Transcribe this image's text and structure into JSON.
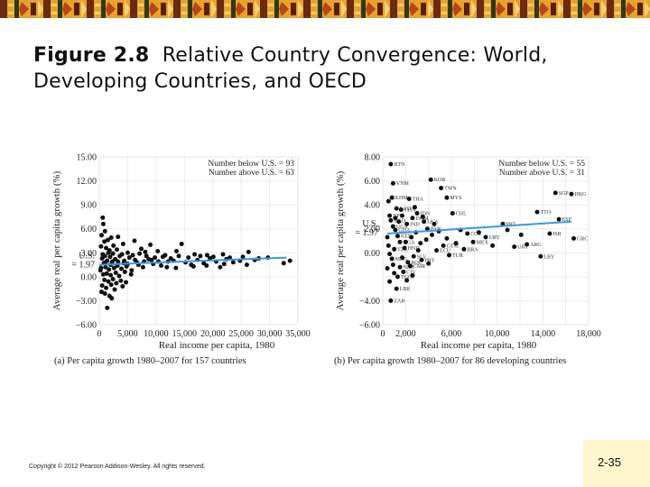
{
  "slide": {
    "title_bold": "Figure 2.8",
    "title_rest": "Relative Country Convergence: World, Developing Countries, and OECD",
    "copyright": "Copyright © 2012 Pearson Addison-Wesley. All rights reserved.",
    "page_number": "2-35",
    "colors": {
      "trend": "#3a9ad9",
      "dot": "#111111",
      "grid": "#e4e4e4",
      "slide_number_bg": "#fdf5cc"
    }
  },
  "chart_data": [
    {
      "type": "scatter",
      "id": "a",
      "caption": "(a) Per capita growth 1980–2007 for 157 countries",
      "xlabel": "Real income per capita, 1980",
      "ylabel": "Average real per capita growth (%)",
      "xlim": [
        0,
        35000
      ],
      "ylim": [
        -6,
        15
      ],
      "x_ticks": [
        0,
        5000,
        10000,
        15000,
        20000,
        25000,
        30000,
        35000
      ],
      "x_tick_labels": [
        "0",
        "5,000",
        "10,000",
        "15,000",
        "20,000",
        "25,000",
        "30,000",
        "35,000"
      ],
      "y_ticks": [
        -6,
        -3,
        0,
        3,
        6,
        9,
        12,
        15
      ],
      "y_tick_labels": [
        "−6.00",
        "−3.00",
        "0.00",
        "3.00",
        "6.00",
        "9.00",
        "12.00",
        "15.00"
      ],
      "us_label": "U.S.",
      "us_value_label": "= 1.97",
      "us_growth": 1.97,
      "annotation_lines": [
        "Number below U.S. = 93",
        "Number above U.S. = 63"
      ],
      "trend": {
        "x": [
          0,
          33000
        ],
        "y": [
          1.5,
          2.4
        ]
      },
      "points": [
        {
          "x": 600,
          "y": 7.4
        },
        {
          "x": 700,
          "y": 6.6
        },
        {
          "x": 1000,
          "y": 5.7
        },
        {
          "x": 400,
          "y": 5.2
        },
        {
          "x": 1500,
          "y": 4.6
        },
        {
          "x": 900,
          "y": 4.4
        },
        {
          "x": 2100,
          "y": 4.9
        },
        {
          "x": 300,
          "y": 3.8
        },
        {
          "x": 1200,
          "y": 3.6
        },
        {
          "x": 1800,
          "y": 3.3
        },
        {
          "x": 2500,
          "y": 3.9
        },
        {
          "x": 3300,
          "y": 5.0
        },
        {
          "x": 4200,
          "y": 4.1
        },
        {
          "x": 5000,
          "y": 3.0
        },
        {
          "x": 6200,
          "y": 4.5
        },
        {
          "x": 7400,
          "y": 3.5
        },
        {
          "x": 8100,
          "y": 3.1
        },
        {
          "x": 9000,
          "y": 4.0
        },
        {
          "x": 10300,
          "y": 3.2
        },
        {
          "x": 11200,
          "y": 2.5
        },
        {
          "x": 13600,
          "y": 3.2
        },
        {
          "x": 14500,
          "y": 4.1
        },
        {
          "x": 8700,
          "y": 2.2
        },
        {
          "x": 6600,
          "y": 1.8
        },
        {
          "x": 5300,
          "y": 2.4
        },
        {
          "x": 4400,
          "y": 2.0
        },
        {
          "x": 3600,
          "y": 2.6
        },
        {
          "x": 2800,
          "y": 2.2
        },
        {
          "x": 2300,
          "y": 1.9
        },
        {
          "x": 1900,
          "y": 2.5
        },
        {
          "x": 1400,
          "y": 2.0
        },
        {
          "x": 800,
          "y": 1.7
        },
        {
          "x": 500,
          "y": 2.3
        },
        {
          "x": 300,
          "y": 1.1
        },
        {
          "x": 1100,
          "y": 1.2
        },
        {
          "x": 1700,
          "y": 0.9
        },
        {
          "x": 2600,
          "y": 1.1
        },
        {
          "x": 3200,
          "y": 1.4
        },
        {
          "x": 3900,
          "y": 1.0
        },
        {
          "x": 4800,
          "y": 1.3
        },
        {
          "x": 5700,
          "y": 0.8
        },
        {
          "x": 6900,
          "y": 1.5
        },
        {
          "x": 7700,
          "y": 1.2
        },
        {
          "x": 9500,
          "y": 1.6
        },
        {
          "x": 10900,
          "y": 1.4
        },
        {
          "x": 12100,
          "y": 1.9
        },
        {
          "x": 13100,
          "y": 2.0
        },
        {
          "x": 15200,
          "y": 1.8
        },
        {
          "x": 16200,
          "y": 1.5
        },
        {
          "x": 17300,
          "y": 2.1
        },
        {
          "x": 18400,
          "y": 1.7
        },
        {
          "x": 19500,
          "y": 2.3
        },
        {
          "x": 20600,
          "y": 1.9
        },
        {
          "x": 21300,
          "y": 1.2
        },
        {
          "x": 22400,
          "y": 2.2
        },
        {
          "x": 23600,
          "y": 1.8
        },
        {
          "x": 24800,
          "y": 2.0
        },
        {
          "x": 26300,
          "y": 3.1
        },
        {
          "x": 27400,
          "y": 2.1
        },
        {
          "x": 29700,
          "y": 2.4
        },
        {
          "x": 32500,
          "y": 1.7
        },
        {
          "x": 700,
          "y": 0.3
        },
        {
          "x": 1300,
          "y": 0.4
        },
        {
          "x": 2000,
          "y": 0.2
        },
        {
          "x": 2900,
          "y": 0.5
        },
        {
          "x": 3500,
          "y": 0.1
        },
        {
          "x": 4500,
          "y": 0.6
        },
        {
          "x": 5600,
          "y": 0.3
        },
        {
          "x": 900,
          "y": -0.4
        },
        {
          "x": 1600,
          "y": -0.6
        },
        {
          "x": 2400,
          "y": -0.3
        },
        {
          "x": 3000,
          "y": -0.8
        },
        {
          "x": 3800,
          "y": -0.5
        },
        {
          "x": 500,
          "y": -1.1
        },
        {
          "x": 1200,
          "y": -1.4
        },
        {
          "x": 2100,
          "y": -1.0
        },
        {
          "x": 2700,
          "y": -1.6
        },
        {
          "x": 4100,
          "y": -1.2
        },
        {
          "x": 4700,
          "y": -0.7
        },
        {
          "x": 1000,
          "y": -2.1
        },
        {
          "x": 1800,
          "y": -2.4
        },
        {
          "x": 400,
          "y": -1.9
        },
        {
          "x": 1400,
          "y": -3.9
        },
        {
          "x": 2200,
          "y": -2.7
        },
        {
          "x": 600,
          "y": 2.8
        },
        {
          "x": 1000,
          "y": 2.6
        },
        {
          "x": 1600,
          "y": 3.0
        },
        {
          "x": 2400,
          "y": 2.9
        },
        {
          "x": 3100,
          "y": 3.4
        },
        {
          "x": 4000,
          "y": 2.8
        },
        {
          "x": 5900,
          "y": 2.7
        },
        {
          "x": 7100,
          "y": 2.9
        },
        {
          "x": 8300,
          "y": 2.6
        },
        {
          "x": 9800,
          "y": 2.4
        },
        {
          "x": 11600,
          "y": 2.7
        },
        {
          "x": 12600,
          "y": 2.3
        },
        {
          "x": 14000,
          "y": 2.6
        },
        {
          "x": 15700,
          "y": 2.4
        },
        {
          "x": 16800,
          "y": 2.8
        },
        {
          "x": 17800,
          "y": 2.6
        },
        {
          "x": 19000,
          "y": 2.7
        },
        {
          "x": 20100,
          "y": 2.5
        },
        {
          "x": 21800,
          "y": 2.8
        },
        {
          "x": 23000,
          "y": 2.4
        },
        {
          "x": 25300,
          "y": 2.5
        },
        {
          "x": 28100,
          "y": 2.3
        },
        {
          "x": 33600,
          "y": 2.0
        },
        {
          "x": 200,
          "y": 0.8
        },
        {
          "x": 1100,
          "y": 1.8
        },
        {
          "x": 2000,
          "y": 1.5
        },
        {
          "x": 3300,
          "y": 1.9
        },
        {
          "x": 4300,
          "y": 1.7
        },
        {
          "x": 5000,
          "y": 1.6
        },
        {
          "x": 6300,
          "y": 2.1
        },
        {
          "x": 7900,
          "y": 1.9
        },
        {
          "x": 9200,
          "y": 2.1
        },
        {
          "x": 10400,
          "y": 1.9
        },
        {
          "x": 11900,
          "y": 1.2
        },
        {
          "x": 13500,
          "y": 1.1
        },
        {
          "x": 16600,
          "y": 1.3
        },
        {
          "x": 18900,
          "y": 1.4
        },
        {
          "x": 22000,
          "y": 1.6
        },
        {
          "x": 26000,
          "y": 1.5
        }
      ]
    },
    {
      "type": "scatter",
      "id": "b",
      "caption": "(b) Per capita growth 1980–2007 for 86 developing countries",
      "xlabel": "Real income per capita, 1980",
      "ylabel": "Average real per capita growth (%)",
      "xlim": [
        0,
        18000
      ],
      "ylim": [
        -6,
        8
      ],
      "x_ticks": [
        0,
        2000,
        4000,
        6000,
        8000,
        10000,
        12000,
        14000,
        16000,
        18000
      ],
      "x_tick_labels": [
        "0",
        "2,000",
        "",
        "6,000",
        "",
        "10,000",
        "",
        "14,000",
        "",
        "18,000"
      ],
      "y_ticks": [
        -6,
        -4,
        -2,
        0,
        2,
        4,
        6,
        8
      ],
      "y_tick_labels": [
        "−6.00",
        "−4.00",
        "",
        "0.00",
        "2.00",
        "4.00",
        "6.00",
        "8.00"
      ],
      "us_label": "U.S.",
      "us_value_label": "= 1.97",
      "us_growth": 1.97,
      "annotation_lines": [
        "Number below U.S. = 55",
        "Number above U.S. = 31"
      ],
      "trend": {
        "x": [
          400,
          16500
        ],
        "y": [
          1.6,
          2.6
        ]
      },
      "points": [
        {
          "x": 700,
          "y": 7.4,
          "code": "BTN"
        },
        {
          "x": 900,
          "y": 5.8,
          "code": "VNM"
        },
        {
          "x": 800,
          "y": 4.6,
          "code": "KHM"
        },
        {
          "x": 2300,
          "y": 4.5,
          "code": "THA"
        },
        {
          "x": 4200,
          "y": 6.1,
          "code": "KOR"
        },
        {
          "x": 5100,
          "y": 5.4,
          "code": "TWN"
        },
        {
          "x": 5600,
          "y": 4.6,
          "code": "MYS"
        },
        {
          "x": 6100,
          "y": 3.3,
          "code": "CHL"
        },
        {
          "x": 3000,
          "y": 3.3,
          "code": "IDN"
        },
        {
          "x": 1600,
          "y": 3.6,
          "code": "CHN"
        },
        {
          "x": 1200,
          "y": 3.7,
          "code": "LAO"
        },
        {
          "x": 2600,
          "y": 2.9,
          "code": "DOM"
        },
        {
          "x": 3600,
          "y": 2.6,
          "code": "LKA"
        },
        {
          "x": 2100,
          "y": 2.4,
          "code": "IND"
        },
        {
          "x": 3900,
          "y": 2.0,
          "code": "PAN"
        },
        {
          "x": 15100,
          "y": 5.0,
          "code": "SGP"
        },
        {
          "x": 16500,
          "y": 4.9,
          "code": "HKG"
        },
        {
          "x": 13500,
          "y": 3.4,
          "code": "TTO"
        },
        {
          "x": 15400,
          "y": 2.8,
          "code": "ESP"
        },
        {
          "x": 10500,
          "y": 2.4,
          "code": "PRT"
        },
        {
          "x": 14600,
          "y": 1.6,
          "code": "ISR"
        },
        {
          "x": 16700,
          "y": 1.2,
          "code": "GRC"
        },
        {
          "x": 12600,
          "y": 0.7,
          "code": "ARG"
        },
        {
          "x": 11500,
          "y": 0.5,
          "code": "URY"
        },
        {
          "x": 9000,
          "y": 1.3,
          "code": "URY"
        },
        {
          "x": 7400,
          "y": 1.6,
          "code": "COL"
        },
        {
          "x": 7900,
          "y": 0.9,
          "code": "MEX"
        },
        {
          "x": 7100,
          "y": 0.3,
          "code": "BRA"
        },
        {
          "x": 13800,
          "y": -0.3,
          "code": "LBY"
        },
        {
          "x": 5300,
          "y": 0.6,
          "code": "GTM"
        },
        {
          "x": 4700,
          "y": 0.2,
          "code": "ECU"
        },
        {
          "x": 5800,
          "y": -0.2,
          "code": "TUR"
        },
        {
          "x": 3400,
          "y": -0.6,
          "code": "PRY"
        },
        {
          "x": 2700,
          "y": -0.3,
          "code": "SLV"
        },
        {
          "x": 2200,
          "y": -0.8,
          "code": "BOL"
        },
        {
          "x": 1900,
          "y": 0.4,
          "code": "HND"
        },
        {
          "x": 1500,
          "y": 0.9,
          "code": "NGA"
        },
        {
          "x": 1300,
          "y": 1.4,
          "code": "KEN"
        },
        {
          "x": 1100,
          "y": 1.9,
          "code": "GHA"
        },
        {
          "x": 900,
          "y": 2.2,
          "code": "UGA"
        },
        {
          "x": 700,
          "y": 2.7,
          "code": "BGD"
        },
        {
          "x": 600,
          "y": 3.1,
          "code": "NPL"
        },
        {
          "x": 1000,
          "y": 0.3,
          "code": "TZA"
        },
        {
          "x": 800,
          "y": -0.5,
          "code": "MDG"
        },
        {
          "x": 1500,
          "y": -1.2,
          "code": "NER"
        },
        {
          "x": 1300,
          "y": -2.0,
          "code": "TGO"
        },
        {
          "x": 1800,
          "y": -1.6,
          "code": "CIV"
        },
        {
          "x": 2400,
          "y": -1.1,
          "code": "CMR"
        },
        {
          "x": 1200,
          "y": -3.0,
          "code": "LBR"
        },
        {
          "x": 700,
          "y": -4.0,
          "code": "ZAR"
        },
        {
          "x": 400,
          "y": 1.3
        },
        {
          "x": 500,
          "y": 0.6
        },
        {
          "x": 600,
          "y": -0.1
        },
        {
          "x": 400,
          "y": -1.3
        },
        {
          "x": 900,
          "y": -1.0
        },
        {
          "x": 1000,
          "y": -1.7
        },
        {
          "x": 1700,
          "y": -0.4
        },
        {
          "x": 2000,
          "y": 0.9
        },
        {
          "x": 2500,
          "y": 1.3
        },
        {
          "x": 2900,
          "y": 1.7
        },
        {
          "x": 3300,
          "y": 0.8
        },
        {
          "x": 3800,
          "y": 1.1
        },
        {
          "x": 4300,
          "y": 1.5
        },
        {
          "x": 4900,
          "y": 1.8
        },
        {
          "x": 5600,
          "y": 1.2
        },
        {
          "x": 6400,
          "y": 0.8
        },
        {
          "x": 6800,
          "y": 1.9
        },
        {
          "x": 8400,
          "y": 1.7
        },
        {
          "x": 9600,
          "y": 0.6
        },
        {
          "x": 10900,
          "y": 1.9
        },
        {
          "x": 12100,
          "y": 1.5
        },
        {
          "x": 1400,
          "y": 2.6
        },
        {
          "x": 1700,
          "y": 3.1
        },
        {
          "x": 2800,
          "y": 3.8
        },
        {
          "x": 3500,
          "y": 3.0
        },
        {
          "x": 4500,
          "y": 2.4
        },
        {
          "x": 500,
          "y": 4.3
        },
        {
          "x": 1100,
          "y": 2.9
        },
        {
          "x": 2100,
          "y": -2.3
        },
        {
          "x": 2600,
          "y": -1.9
        },
        {
          "x": 600,
          "y": -2.4
        },
        {
          "x": 3100,
          "y": 0.2
        },
        {
          "x": 4000,
          "y": -0.9
        }
      ]
    }
  ]
}
